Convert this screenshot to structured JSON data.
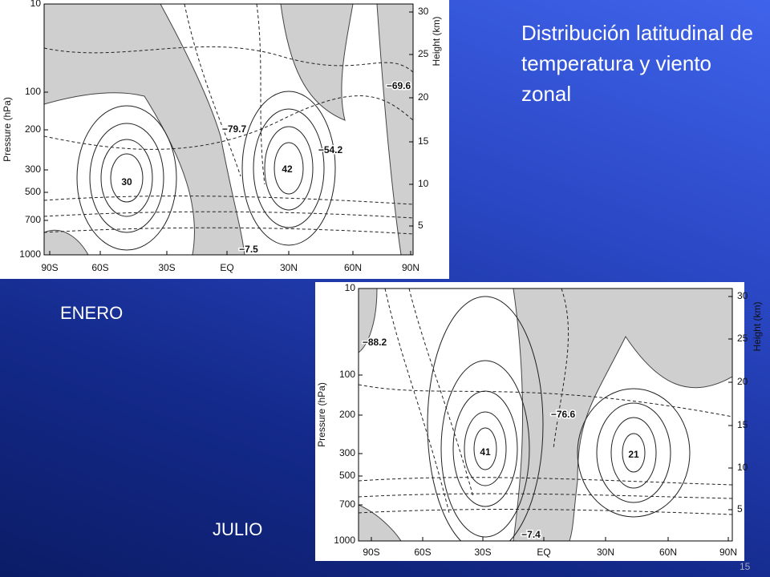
{
  "slide": {
    "title": "Distribución latitudinal de temperatura y viento zonal",
    "month_labels": [
      "ENERO",
      "JULIO"
    ],
    "page_number": "15"
  },
  "panels": [
    {
      "y_label": "Pressure (hPa)",
      "y2_label": "Height (km)",
      "pressure_ticks": [
        "10",
        "100",
        "200",
        "300",
        "500",
        "700",
        "1000"
      ],
      "height_ticks": [
        "30",
        "25",
        "20",
        "15",
        "10",
        "5"
      ],
      "x_ticks": [
        "90S",
        "60S",
        "30S",
        "EQ",
        "30N",
        "60N",
        "90N"
      ],
      "contour_labels": [
        "−69.6",
        "−79.7",
        "−54.2",
        "30",
        "42",
        "−7.5"
      ]
    },
    {
      "y_label": "Pressure (hPa)",
      "y2_label": "Height (km)",
      "pressure_ticks": [
        "10",
        "100",
        "200",
        "300",
        "500",
        "700",
        "1000"
      ],
      "height_ticks": [
        "30",
        "25",
        "20",
        "15",
        "10",
        "5"
      ],
      "x_ticks": [
        "90S",
        "60S",
        "30S",
        "EQ",
        "30N",
        "60N",
        "90N"
      ],
      "contour_labels": [
        "−88.2",
        "−76.6",
        "41",
        "21",
        "−7.4"
      ]
    }
  ]
}
